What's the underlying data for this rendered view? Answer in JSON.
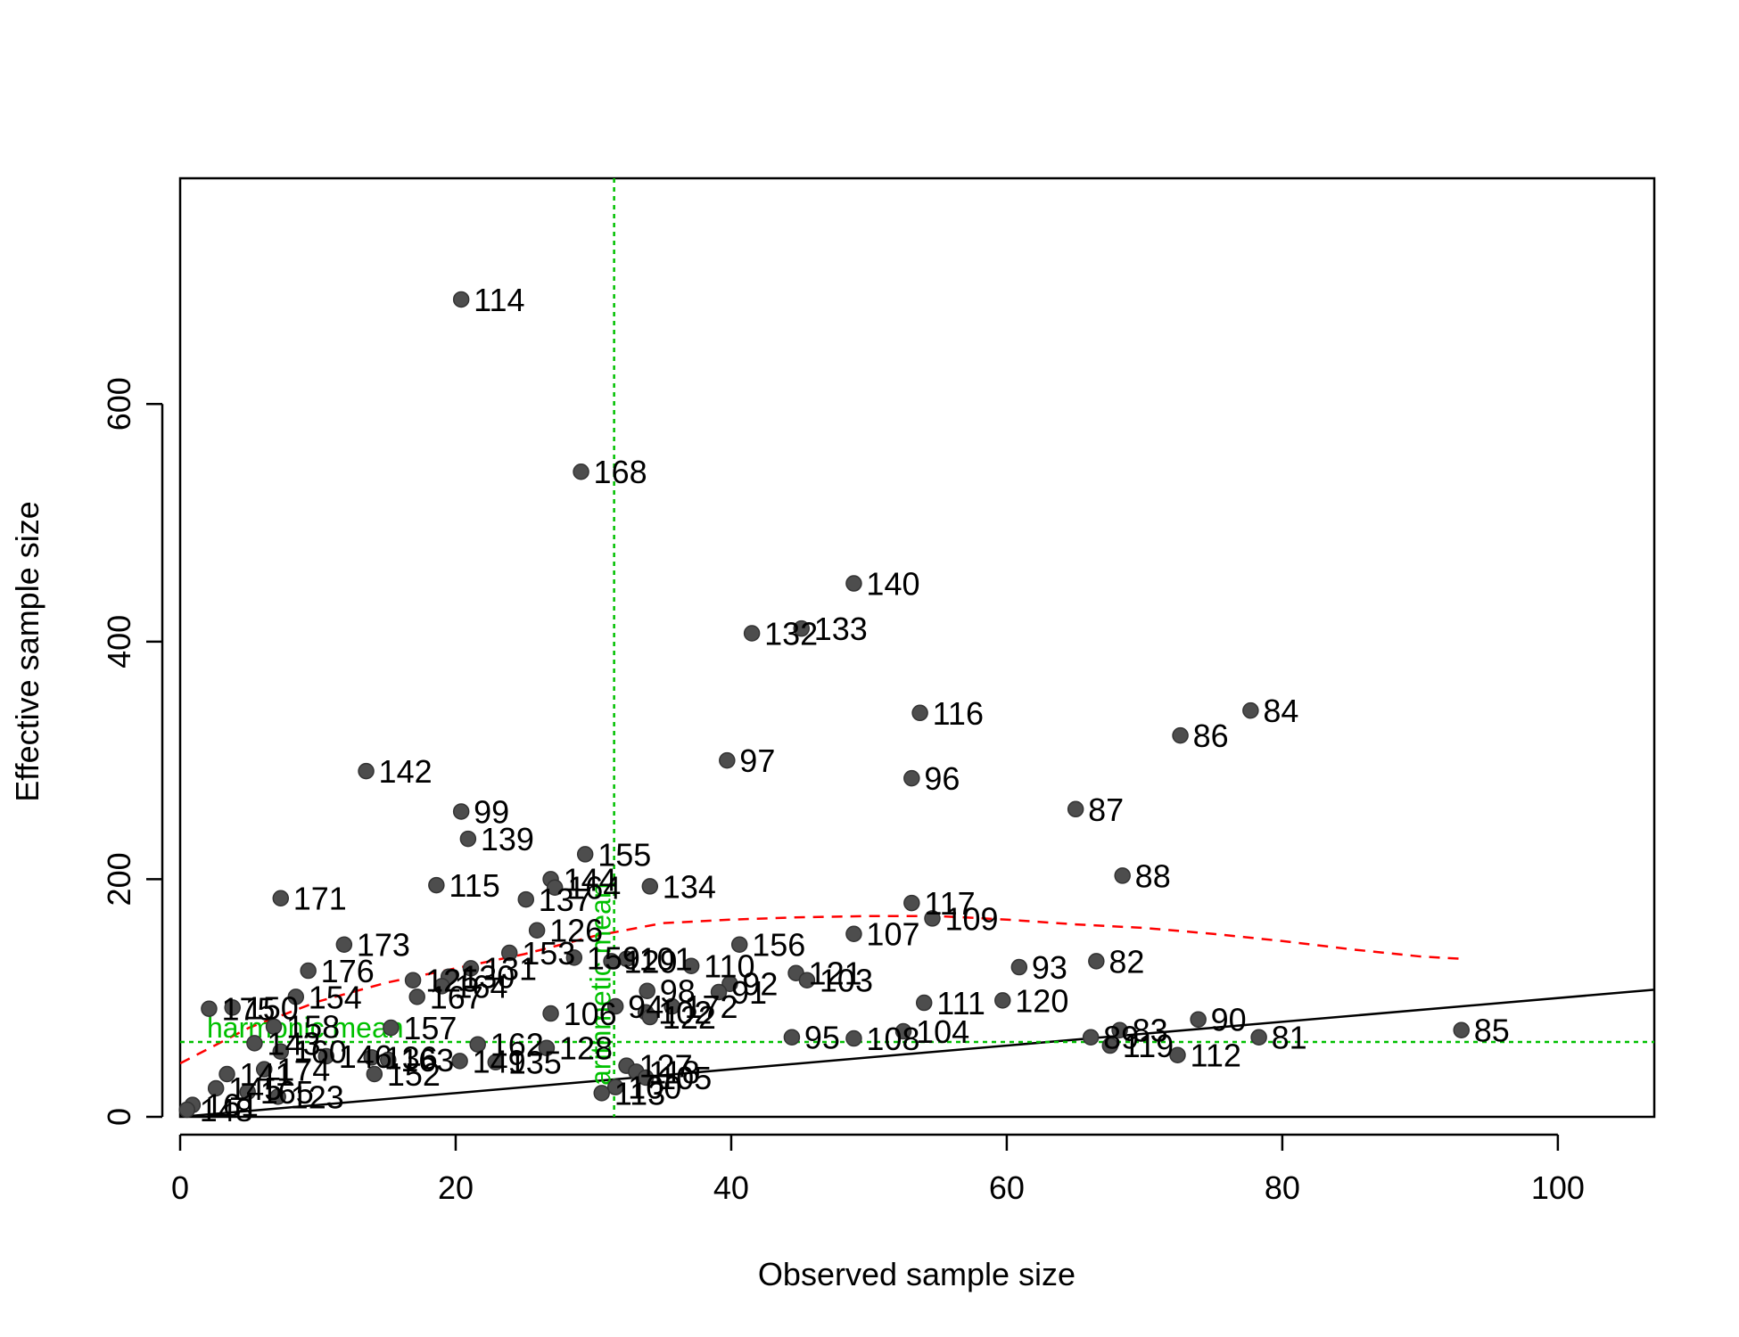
{
  "chart_data": {
    "type": "scatter",
    "title": "",
    "xlabel": "Observed sample size",
    "ylabel": "Effective sample size",
    "xlim": [
      0,
      107
    ],
    "ylim": [
      0,
      790
    ],
    "x_ticks": [
      0,
      20,
      40,
      60,
      80,
      100
    ],
    "y_ticks": [
      0,
      200,
      400,
      600
    ],
    "x_tick_labels": [
      "0",
      "20",
      "40",
      "60",
      "80",
      "100"
    ],
    "y_tick_labels": [
      "0",
      "200",
      "400",
      "600"
    ],
    "grid": false,
    "point_color": "#4d4d4d",
    "reference_line": {
      "x": [
        0,
        107
      ],
      "y": [
        0,
        107
      ],
      "color": "#000000"
    },
    "trend_line": {
      "color": "#ff0000",
      "x": [
        0,
        5,
        10,
        15,
        20,
        25,
        30,
        35,
        40,
        45,
        50,
        55,
        60,
        65,
        70,
        75,
        80,
        85,
        90,
        93
      ],
      "y": [
        45,
        75,
        97,
        113,
        125,
        137,
        152,
        163,
        166,
        168,
        169,
        169,
        166,
        162,
        159,
        154,
        148,
        141,
        135,
        133
      ]
    },
    "arithmetic_mean": {
      "value": 31.5,
      "label": "arithmetic mean",
      "color": "#00c000"
    },
    "harmonic_mean": {
      "value": 63,
      "label": "harmonic mean",
      "color": "#00c000"
    },
    "points": [
      {
        "label": "114",
        "x": 20.4,
        "y": 688
      },
      {
        "label": "168",
        "x": 29.1,
        "y": 543
      },
      {
        "label": "140",
        "x": 48.9,
        "y": 449
      },
      {
        "label": "133",
        "x": 45.1,
        "y": 411
      },
      {
        "label": "132",
        "x": 41.5,
        "y": 407
      },
      {
        "label": "116",
        "x": 53.7,
        "y": 340
      },
      {
        "label": "84",
        "x": 77.7,
        "y": 342
      },
      {
        "label": "86",
        "x": 72.6,
        "y": 321
      },
      {
        "label": "97",
        "x": 39.7,
        "y": 300
      },
      {
        "label": "142",
        "x": 13.5,
        "y": 291
      },
      {
        "label": "96",
        "x": 53.1,
        "y": 285
      },
      {
        "label": "87",
        "x": 65.0,
        "y": 259
      },
      {
        "label": "99",
        "x": 20.4,
        "y": 257
      },
      {
        "label": "139",
        "x": 20.9,
        "y": 234
      },
      {
        "label": "155",
        "x": 29.4,
        "y": 221
      },
      {
        "label": "88",
        "x": 68.4,
        "y": 203
      },
      {
        "label": "144",
        "x": 26.9,
        "y": 200
      },
      {
        "label": "115",
        "x": 18.6,
        "y": 195
      },
      {
        "label": "134",
        "x": 34.1,
        "y": 194
      },
      {
        "label": "164",
        "x": 27.2,
        "y": 193
      },
      {
        "label": "171",
        "x": 7.3,
        "y": 184
      },
      {
        "label": "137",
        "x": 25.1,
        "y": 183
      },
      {
        "label": "117",
        "x": 53.1,
        "y": 180
      },
      {
        "label": "109",
        "x": 54.6,
        "y": 167
      },
      {
        "label": "126",
        "x": 25.9,
        "y": 157
      },
      {
        "label": "107",
        "x": 48.9,
        "y": 154
      },
      {
        "label": "173",
        "x": 11.9,
        "y": 145
      },
      {
        "label": "156",
        "x": 40.6,
        "y": 145
      },
      {
        "label": "153",
        "x": 23.9,
        "y": 138
      },
      {
        "label": "159",
        "x": 28.6,
        "y": 134
      },
      {
        "label": "129",
        "x": 31.3,
        "y": 131
      },
      {
        "label": "101",
        "x": 32.4,
        "y": 133
      },
      {
        "label": "82",
        "x": 66.5,
        "y": 131
      },
      {
        "label": "110",
        "x": 37.1,
        "y": 127
      },
      {
        "label": "93",
        "x": 60.9,
        "y": 126
      },
      {
        "label": "176",
        "x": 9.3,
        "y": 123
      },
      {
        "label": "131",
        "x": 21.1,
        "y": 125
      },
      {
        "label": "121",
        "x": 44.7,
        "y": 121
      },
      {
        "label": "130",
        "x": 19.5,
        "y": 118
      },
      {
        "label": "103",
        "x": 45.5,
        "y": 115
      },
      {
        "label": "125",
        "x": 16.9,
        "y": 115
      },
      {
        "label": "164",
        "x": 19.0,
        "y": 110
      },
      {
        "label": "92",
        "x": 39.9,
        "y": 112
      },
      {
        "label": "91",
        "x": 39.1,
        "y": 105
      },
      {
        "label": "98",
        "x": 33.9,
        "y": 106
      },
      {
        "label": "154",
        "x": 8.4,
        "y": 101
      },
      {
        "label": "167",
        "x": 17.2,
        "y": 101
      },
      {
        "label": "120",
        "x": 59.7,
        "y": 98
      },
      {
        "label": "111",
        "x": 54.0,
        "y": 96
      },
      {
        "label": "172",
        "x": 35.7,
        "y": 93
      },
      {
        "label": "94",
        "x": 31.6,
        "y": 93
      },
      {
        "label": "175",
        "x": 2.1,
        "y": 91
      },
      {
        "label": "150",
        "x": 3.8,
        "y": 92
      },
      {
        "label": "106",
        "x": 26.9,
        "y": 87
      },
      {
        "label": "102",
        "x": 33.8,
        "y": 88
      },
      {
        "label": "122",
        "x": 34.1,
        "y": 84
      },
      {
        "label": "90",
        "x": 73.9,
        "y": 82
      },
      {
        "label": "157",
        "x": 15.3,
        "y": 75
      },
      {
        "label": "85",
        "x": 93.0,
        "y": 73
      },
      {
        "label": "158",
        "x": 6.8,
        "y": 76
      },
      {
        "label": "104",
        "x": 52.5,
        "y": 72
      },
      {
        "label": "83",
        "x": 68.2,
        "y": 73
      },
      {
        "label": "81",
        "x": 78.3,
        "y": 67
      },
      {
        "label": "95",
        "x": 44.4,
        "y": 67
      },
      {
        "label": "108",
        "x": 48.9,
        "y": 66
      },
      {
        "label": "89",
        "x": 66.1,
        "y": 67
      },
      {
        "label": "119",
        "x": 67.5,
        "y": 60
      },
      {
        "label": "112",
        "x": 72.4,
        "y": 52
      },
      {
        "label": "128",
        "x": 26.6,
        "y": 58
      },
      {
        "label": "162",
        "x": 21.6,
        "y": 61
      },
      {
        "label": "143",
        "x": 5.4,
        "y": 62
      },
      {
        "label": "160",
        "x": 7.3,
        "y": 55
      },
      {
        "label": "146",
        "x": 10.6,
        "y": 51
      },
      {
        "label": "136",
        "x": 13.9,
        "y": 50
      },
      {
        "label": "163",
        "x": 15.1,
        "y": 48
      },
      {
        "label": "149",
        "x": 20.3,
        "y": 47
      },
      {
        "label": "135",
        "x": 22.9,
        "y": 46
      },
      {
        "label": "127",
        "x": 32.4,
        "y": 43
      },
      {
        "label": "174",
        "x": 6.1,
        "y": 40
      },
      {
        "label": "118",
        "x": 33.1,
        "y": 38
      },
      {
        "label": "152",
        "x": 14.1,
        "y": 36
      },
      {
        "label": "141",
        "x": 3.4,
        "y": 36
      },
      {
        "label": "105",
        "x": 33.8,
        "y": 33
      },
      {
        "label": "100",
        "x": 31.6,
        "y": 25
      },
      {
        "label": "145",
        "x": 2.6,
        "y": 24
      },
      {
        "label": "165",
        "x": 4.9,
        "y": 21
      },
      {
        "label": "113",
        "x": 30.6,
        "y": 20
      },
      {
        "label": "123",
        "x": 7.1,
        "y": 17
      },
      {
        "label": "161",
        "x": 0.9,
        "y": 10
      },
      {
        "label": "148",
        "x": 0.5,
        "y": 6
      }
    ]
  }
}
